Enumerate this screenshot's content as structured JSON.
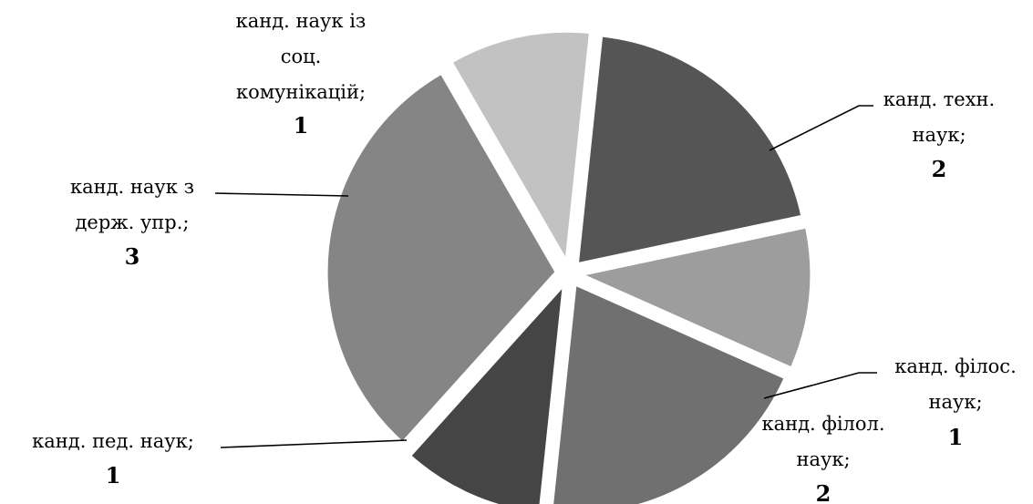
{
  "chart_data": {
    "type": "pie",
    "exploded": true,
    "grid": false,
    "legend": "none",
    "series": [
      {
        "slices": [
          {
            "label": "канд. техн. наук;",
            "value": 2,
            "color": "#555555"
          },
          {
            "label": "канд. філос. наук;",
            "value": 1,
            "color": "#9d9d9d"
          },
          {
            "label": "канд. філол. наук;",
            "value": 2,
            "color": "#707070"
          },
          {
            "label": "канд. пед. наук;",
            "value": 1,
            "color": "#454545"
          },
          {
            "label": "канд. наук з держ. упр.;",
            "value": 3,
            "color": "#858585"
          },
          {
            "label": "канд. наук із соц. комунікацій;",
            "value": 1,
            "color": "#c2c2c2"
          }
        ]
      }
    ]
  }
}
